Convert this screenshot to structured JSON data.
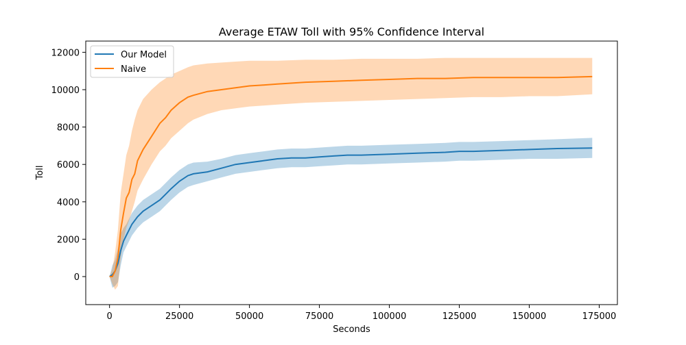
{
  "chart_data": {
    "type": "line",
    "title": "Average ETAW Toll with 95% Confidence Interval",
    "xlabel": "Seconds",
    "ylabel": "Toll",
    "xlim": [
      -8500,
      181500
    ],
    "ylim": [
      -1500,
      12600
    ],
    "xticks": [
      0,
      25000,
      50000,
      75000,
      100000,
      125000,
      150000,
      175000
    ],
    "yticks": [
      0,
      2000,
      4000,
      6000,
      8000,
      10000,
      12000
    ],
    "grid": false,
    "legend_position": "upper-left",
    "series": [
      {
        "name": "Our Model",
        "color": "#1f77b4",
        "band_color": "#1f77b4",
        "x": [
          0,
          1000,
          2000,
          3000,
          4000,
          5000,
          6000,
          7000,
          8000,
          10000,
          12000,
          15000,
          18000,
          20000,
          22000,
          25000,
          28000,
          30000,
          35000,
          40000,
          45000,
          50000,
          55000,
          60000,
          65000,
          70000,
          75000,
          80000,
          85000,
          90000,
          100000,
          110000,
          120000,
          125000,
          130000,
          140000,
          150000,
          160000,
          172500
        ],
        "y": [
          0,
          100,
          300,
          700,
          1400,
          1900,
          2200,
          2500,
          2800,
          3200,
          3500,
          3800,
          4100,
          4400,
          4700,
          5100,
          5400,
          5500,
          5600,
          5800,
          6000,
          6100,
          6200,
          6300,
          6350,
          6350,
          6400,
          6450,
          6500,
          6500,
          6550,
          6600,
          6650,
          6700,
          6700,
          6750,
          6800,
          6850,
          6880
        ],
        "lower": [
          0,
          -600,
          -500,
          -300,
          600,
          1300,
          1600,
          1900,
          2200,
          2600,
          2900,
          3200,
          3500,
          3800,
          4100,
          4500,
          4800,
          4900,
          5100,
          5300,
          5500,
          5600,
          5700,
          5800,
          5850,
          5850,
          5900,
          5950,
          6000,
          6000,
          6050,
          6100,
          6150,
          6200,
          6200,
          6250,
          6300,
          6300,
          6350
        ],
        "upper": [
          0,
          600,
          900,
          1500,
          2300,
          2600,
          2800,
          3100,
          3400,
          3800,
          4100,
          4400,
          4700,
          5000,
          5300,
          5700,
          6000,
          6100,
          6150,
          6300,
          6500,
          6600,
          6700,
          6800,
          6850,
          6850,
          6900,
          6950,
          7000,
          7000,
          7050,
          7100,
          7150,
          7200,
          7200,
          7250,
          7300,
          7350,
          7420
        ]
      },
      {
        "name": "Naive",
        "color": "#ff7f0e",
        "band_color": "#ff7f0e",
        "x": [
          0,
          1000,
          2000,
          3000,
          4000,
          5000,
          6000,
          7000,
          8000,
          9000,
          10000,
          12000,
          15000,
          18000,
          20000,
          22000,
          25000,
          28000,
          30000,
          35000,
          40000,
          45000,
          50000,
          55000,
          60000,
          70000,
          80000,
          90000,
          100000,
          110000,
          120000,
          130000,
          140000,
          150000,
          160000,
          172500
        ],
        "y": [
          0,
          0,
          300,
          1000,
          2500,
          3400,
          4200,
          4500,
          5200,
          5500,
          6200,
          6800,
          7500,
          8200,
          8500,
          8900,
          9300,
          9600,
          9700,
          9900,
          10000,
          10100,
          10200,
          10250,
          10300,
          10400,
          10450,
          10500,
          10550,
          10600,
          10600,
          10650,
          10650,
          10650,
          10650,
          10700
        ],
        "lower": [
          0,
          -400,
          -700,
          -500,
          1000,
          2000,
          2600,
          3000,
          3500,
          4000,
          4600,
          5200,
          6000,
          6700,
          7000,
          7400,
          7800,
          8200,
          8400,
          8700,
          8900,
          9000,
          9100,
          9150,
          9200,
          9300,
          9350,
          9400,
          9450,
          9500,
          9550,
          9600,
          9600,
          9650,
          9650,
          9750
        ],
        "upper": [
          0,
          400,
          1300,
          2500,
          4500,
          5500,
          6500,
          7000,
          7800,
          8400,
          8900,
          9500,
          10000,
          10400,
          10600,
          10800,
          11000,
          11200,
          11300,
          11400,
          11450,
          11500,
          11550,
          11550,
          11550,
          11600,
          11600,
          11650,
          11650,
          11650,
          11700,
          11700,
          11700,
          11700,
          11700,
          11700
        ]
      }
    ]
  }
}
